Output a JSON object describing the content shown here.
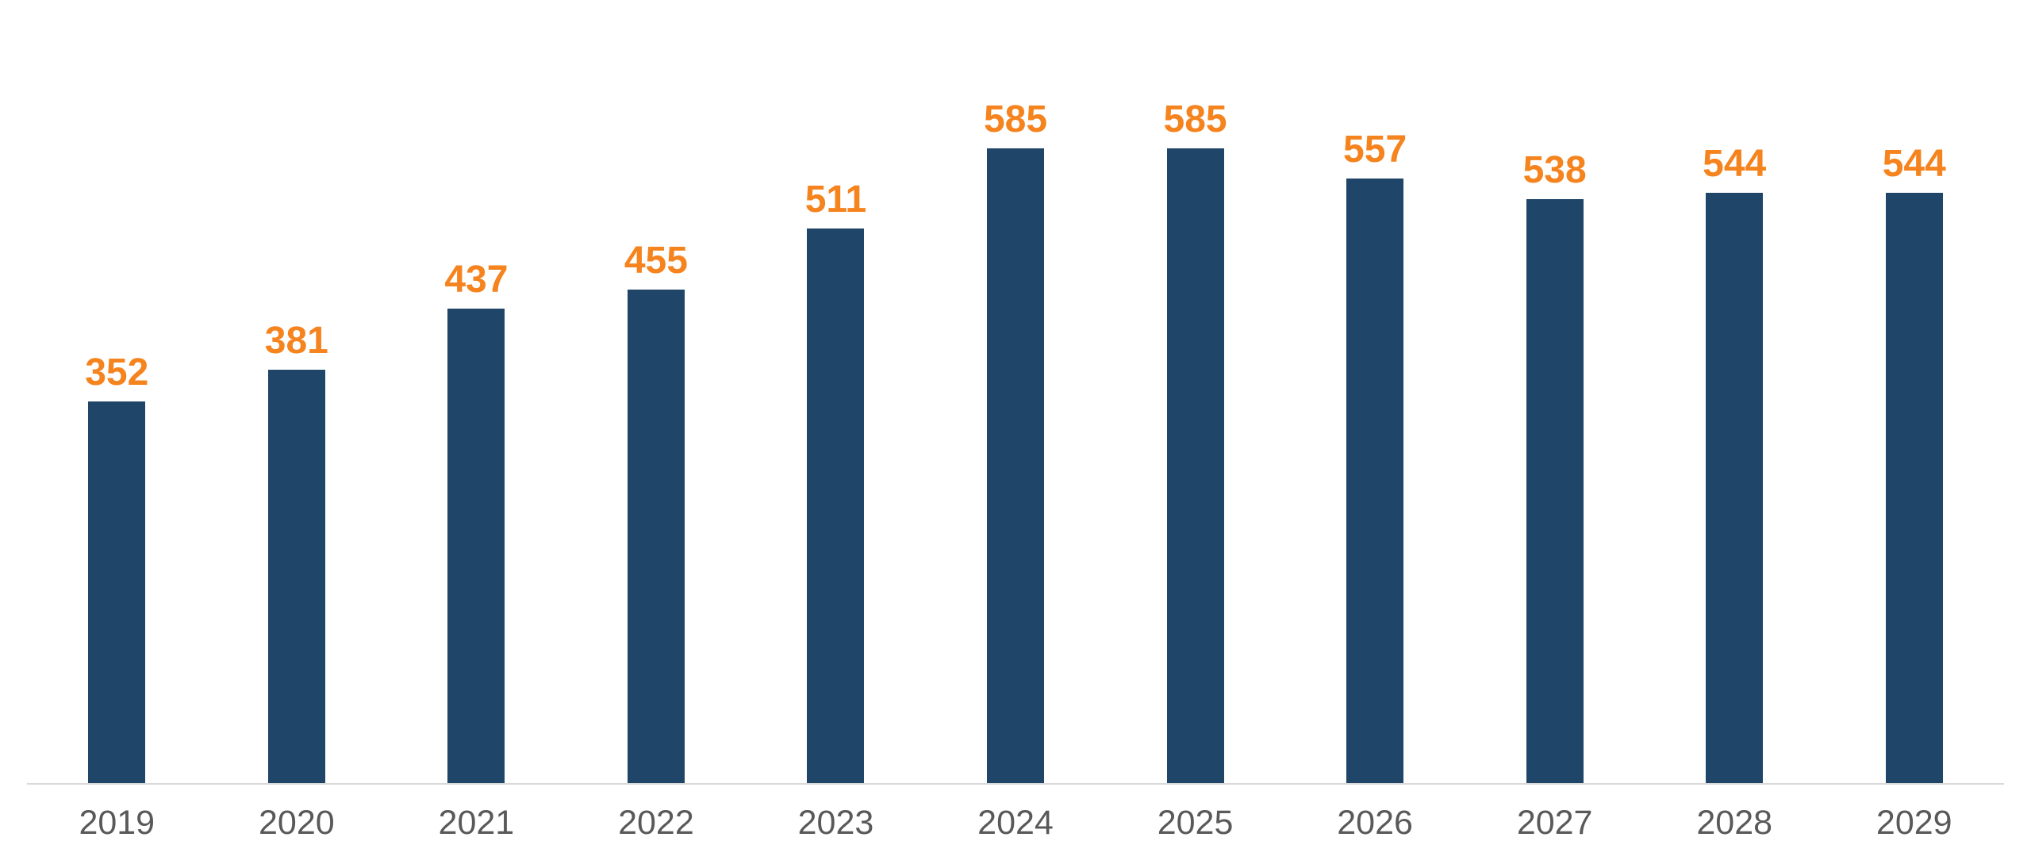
{
  "page": {
    "background_color": "#ffffff"
  },
  "chart_data": {
    "type": "bar",
    "title": "",
    "xlabel": "",
    "ylabel": "",
    "categories": [
      "2019",
      "2020",
      "2021",
      "2022",
      "2023",
      "2024",
      "2025",
      "2026",
      "2027",
      "2028",
      "2029"
    ],
    "values": [
      352,
      381,
      437,
      455,
      511,
      585,
      585,
      557,
      538,
      544,
      544
    ],
    "data_labels_shown": true,
    "baseline": 0,
    "ylim": [
      0,
      640
    ],
    "grid": false,
    "legend": false,
    "y_axis_shown": false,
    "x_axis_line_shown": true,
    "bar_color": "#1f4568",
    "value_label_color": "#f5831e",
    "tick_label_color": "#595959",
    "baseline_color": "#d9d9d9"
  }
}
